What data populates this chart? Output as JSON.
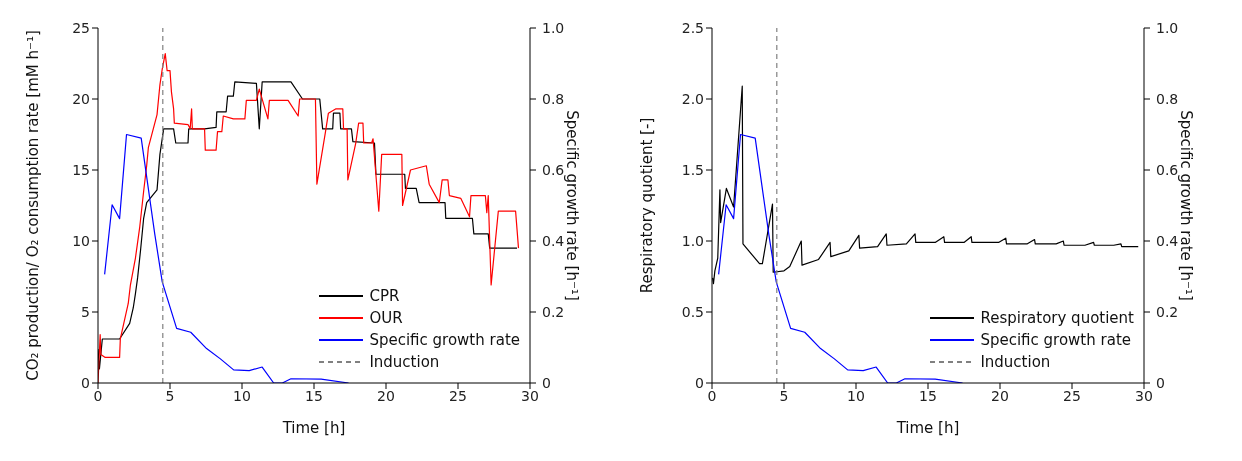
{
  "chart_data": [
    {
      "type": "line",
      "xlabel": "Time [h]",
      "ylabel": "CO₂ production/ O₂ consumption rate [mM h⁻¹]",
      "y2label": "Specific growth rate [h⁻¹]",
      "xlim": [
        0,
        30
      ],
      "xticks": [
        0,
        5,
        10,
        15,
        20,
        25,
        30
      ],
      "ylim": [
        0,
        25
      ],
      "yticks": [
        0,
        5,
        10,
        15,
        20,
        25
      ],
      "y2lim": [
        0,
        1
      ],
      "y2ticks": [
        0,
        0.2,
        0.4,
        0.6,
        0.8,
        {
          "value": 1,
          "label": "1.0"
        }
      ],
      "legend": "bottom right",
      "grid": false,
      "line_style": "solid",
      "marker": "none",
      "series": [
        {
          "name": "CPR",
          "color": "#000000",
          "x": [
            0,
            0.1,
            0.3,
            1.5,
            2.2,
            2.45,
            2.6,
            2.75,
            2.96,
            3.17,
            3.38,
            4.1,
            4.3,
            4.56,
            5.25,
            5.4,
            6.25,
            6.3,
            7.4,
            8.2,
            8.25,
            8.9,
            9.0,
            9.4,
            9.5,
            11.0,
            11.2,
            11.4,
            13.4,
            14.2,
            15.4,
            15.6,
            16.3,
            16.35,
            16.8,
            16.85,
            17.6,
            17.7,
            19.2,
            19.25,
            19.3,
            21.3,
            21.35,
            22.1,
            22.3,
            24.1,
            24.15,
            26.0,
            26.1,
            27.1,
            27.2,
            29.1
          ],
          "values": [
            2.4,
            1.0,
            3.1,
            3.1,
            4.2,
            5.3,
            6.3,
            7.4,
            9.4,
            11.6,
            12.7,
            13.6,
            16.1,
            17.9,
            17.9,
            16.9,
            16.9,
            17.9,
            17.9,
            18.0,
            19.1,
            19.1,
            20.2,
            20.2,
            21.2,
            21.1,
            17.9,
            21.2,
            21.2,
            20.0,
            20.0,
            17.9,
            17.9,
            19.0,
            19.0,
            17.9,
            17.9,
            17.0,
            16.9,
            15.8,
            14.7,
            14.7,
            13.7,
            13.7,
            12.7,
            12.7,
            11.6,
            11.6,
            10.5,
            10.5,
            9.5,
            9.5
          ]
        },
        {
          "name": "OUR",
          "color": "#ff0000",
          "x": [
            0,
            0.15,
            0.2,
            0.5,
            1.5,
            1.55,
            2.1,
            2.25,
            2.6,
            2.9,
            3.17,
            3.38,
            3.5,
            4.1,
            4.3,
            4.46,
            4.67,
            4.8,
            5.0,
            5.1,
            5.25,
            5.3,
            6.25,
            6.4,
            6.5,
            6.55,
            7.4,
            7.45,
            8.2,
            8.3,
            8.6,
            8.7,
            9.4,
            10.2,
            10.3,
            11.0,
            11.2,
            11.8,
            11.9,
            13.2,
            13.9,
            14.0,
            15.1,
            15.2,
            15.8,
            16.0,
            16.5,
            17.0,
            17.05,
            17.3,
            17.35,
            17.9,
            18.1,
            18.4,
            18.45,
            19.0,
            19.1,
            19.5,
            19.7,
            21.1,
            21.15,
            21.7,
            22.8,
            23.0,
            23.7,
            23.9,
            24.3,
            24.4,
            25.2,
            25.8,
            25.9,
            26.9,
            27.0,
            27.1,
            27.3,
            27.8,
            29.0,
            29.1,
            29.2
          ],
          "values": [
            0,
            3.4,
            2.0,
            1.8,
            1.8,
            3.1,
            5.6,
            6.9,
            8.8,
            11.0,
            13.5,
            15.3,
            16.6,
            18.9,
            21.0,
            22.1,
            23.2,
            22.0,
            22.0,
            20.5,
            19.3,
            18.3,
            18.2,
            17.9,
            19.3,
            17.9,
            17.9,
            16.4,
            16.4,
            17.7,
            17.7,
            18.8,
            18.6,
            18.6,
            19.9,
            19.9,
            20.7,
            18.6,
            19.9,
            19.9,
            18.8,
            20.0,
            20.0,
            14.0,
            17.7,
            19.0,
            19.3,
            19.3,
            17.9,
            17.9,
            14.3,
            16.9,
            18.3,
            18.3,
            16.9,
            16.9,
            17.2,
            12.1,
            16.1,
            16.1,
            12.5,
            15.0,
            15.3,
            14.0,
            12.7,
            14.3,
            14.3,
            13.2,
            13.0,
            11.7,
            13.2,
            13.2,
            12.0,
            13.2,
            6.9,
            12.1,
            12.1,
            10.8,
            9.5
          ]
        },
        {
          "name": "Specific growth rate",
          "color": "#0000ff",
          "axis": "y2",
          "x": [
            0.46,
            0.98,
            1.5,
            1.98,
            3.0,
            3.94,
            4.46,
            5.46,
            6.44,
            7.54,
            8.5,
            9.42,
            10.5,
            11.4,
            12.2,
            12.8,
            13.4,
            15.5,
            17.4
          ],
          "values": [
            0.306,
            0.502,
            0.463,
            0.7,
            0.69,
            0.42,
            0.285,
            0.154,
            0.143,
            0.097,
            0.068,
            0.037,
            0.035,
            0.045,
            0,
            0,
            0.012,
            0.011,
            0
          ]
        },
        {
          "name": "Induction",
          "color": "#808080",
          "line_style": "dashed",
          "x": [
            4.5,
            4.5
          ],
          "values": [
            0,
            25
          ]
        }
      ]
    },
    {
      "type": "line",
      "xlabel": "Time [h]",
      "ylabel": "Respiratory quotient [-]",
      "y2label": "Specific growth rate [h⁻¹]",
      "xlim": [
        0,
        30
      ],
      "xticks": [
        0,
        5,
        10,
        15,
        20,
        25,
        30
      ],
      "ylim": [
        0,
        2.5
      ],
      "yticks": [
        0,
        0.5,
        {
          "value": 1,
          "label": "1.0"
        },
        1.5,
        {
          "value": 2,
          "label": "2.0"
        },
        2.5
      ],
      "y2lim": [
        0,
        1
      ],
      "y2ticks": [
        0,
        0.2,
        0.4,
        0.6,
        0.8,
        {
          "value": 1,
          "label": "1.0"
        }
      ],
      "legend": "bottom right",
      "grid": false,
      "line_style": "solid",
      "marker": "none",
      "series": [
        {
          "name": "Respiratory quotient",
          "color": "#000000",
          "x": [
            0.04,
            0.1,
            0.2,
            0.4,
            0.55,
            0.6,
            1.0,
            1.5,
            2.1,
            2.15,
            3.3,
            3.5,
            4.2,
            4.25,
            5.0,
            5.4,
            6.2,
            6.25,
            7.4,
            8.2,
            8.25,
            9.5,
            10.2,
            10.25,
            11.5,
            12.1,
            12.15,
            13.5,
            14.1,
            14.15,
            15.5,
            16.1,
            16.15,
            17.5,
            18.0,
            18.05,
            19.9,
            20.4,
            20.45,
            21.9,
            22.4,
            22.45,
            23.9,
            24.4,
            24.45,
            25.9,
            26.5,
            26.55,
            27.9,
            28.4,
            28.45,
            29.6
          ],
          "values": [
            0.74,
            0.7,
            0.79,
            0.88,
            1.36,
            1.13,
            1.37,
            1.24,
            2.09,
            0.98,
            0.84,
            0.84,
            1.26,
            0.78,
            0.79,
            0.82,
            1.0,
            0.83,
            0.87,
            0.99,
            0.89,
            0.93,
            1.04,
            0.95,
            0.96,
            1.05,
            0.97,
            0.98,
            1.05,
            0.99,
            0.99,
            1.03,
            0.99,
            0.99,
            1.03,
            0.99,
            0.99,
            1.02,
            0.98,
            0.98,
            1.01,
            0.98,
            0.98,
            1.0,
            0.97,
            0.97,
            0.99,
            0.97,
            0.97,
            0.98,
            0.96,
            0.96
          ]
        },
        {
          "name": "Specific growth rate",
          "color": "#0000ff",
          "axis": "y2",
          "x": [
            0.46,
            0.98,
            1.5,
            1.98,
            3.0,
            3.94,
            4.46,
            5.46,
            6.44,
            7.54,
            8.5,
            9.42,
            10.5,
            11.4,
            12.2,
            12.8,
            13.4,
            15.5,
            17.4
          ],
          "values": [
            0.306,
            0.502,
            0.463,
            0.7,
            0.69,
            0.42,
            0.285,
            0.154,
            0.143,
            0.097,
            0.068,
            0.037,
            0.035,
            0.045,
            0,
            0,
            0.012,
            0.011,
            0
          ]
        },
        {
          "name": "Induction",
          "color": "#808080",
          "line_style": "dashed",
          "x": [
            4.5,
            4.5
          ],
          "values": [
            0,
            2.5
          ]
        }
      ]
    }
  ]
}
